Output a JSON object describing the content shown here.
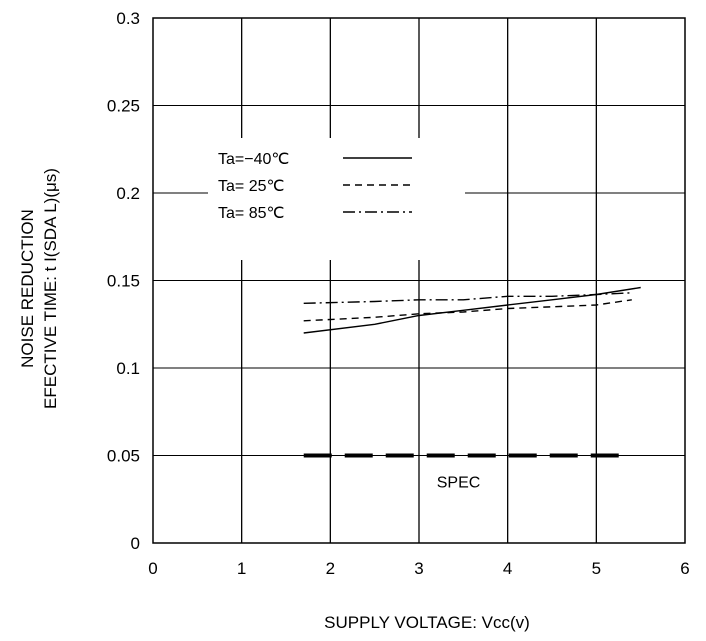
{
  "chart_data": {
    "type": "line",
    "xlabel": "SUPPLY VOLTAGE: Vcc(v)",
    "ylabel_line1": "NOISE REDUCTION",
    "ylabel_line2": "EFECTIVE TIME: t I(SDA L)(μs)",
    "xlim": [
      0,
      6
    ],
    "ylim": [
      0,
      0.3
    ],
    "xticks": [
      "0",
      "1",
      "2",
      "3",
      "4",
      "5",
      "6"
    ],
    "yticks": [
      "0",
      "0.05",
      "0.1",
      "0.15",
      "0.2",
      "0.25",
      "0.3"
    ],
    "grid": true,
    "legend_position": "upper-left",
    "series": [
      {
        "name": "Ta=−40℃",
        "style": "solid",
        "x": [
          1.7,
          2.5,
          3.0,
          3.5,
          4.0,
          4.5,
          5.0,
          5.5
        ],
        "y": [
          0.12,
          0.125,
          0.13,
          0.133,
          0.136,
          0.139,
          0.142,
          0.146
        ]
      },
      {
        "name": "Ta= 25℃",
        "style": "dashed",
        "x": [
          1.7,
          2.5,
          3.0,
          3.5,
          4.0,
          4.5,
          5.0,
          5.4
        ],
        "y": [
          0.127,
          0.129,
          0.131,
          0.132,
          0.134,
          0.135,
          0.136,
          0.139
        ]
      },
      {
        "name": "Ta= 85℃",
        "style": "dashdot",
        "x": [
          1.7,
          2.5,
          3.0,
          3.5,
          4.0,
          4.5,
          5.0,
          5.4
        ],
        "y": [
          0.137,
          0.138,
          0.139,
          0.139,
          0.141,
          0.141,
          0.142,
          0.143
        ]
      }
    ],
    "annotations": [
      {
        "label": "SPEC",
        "style": "thick-dashed",
        "x": [
          1.7,
          5.3
        ],
        "y": 0.05
      }
    ]
  }
}
